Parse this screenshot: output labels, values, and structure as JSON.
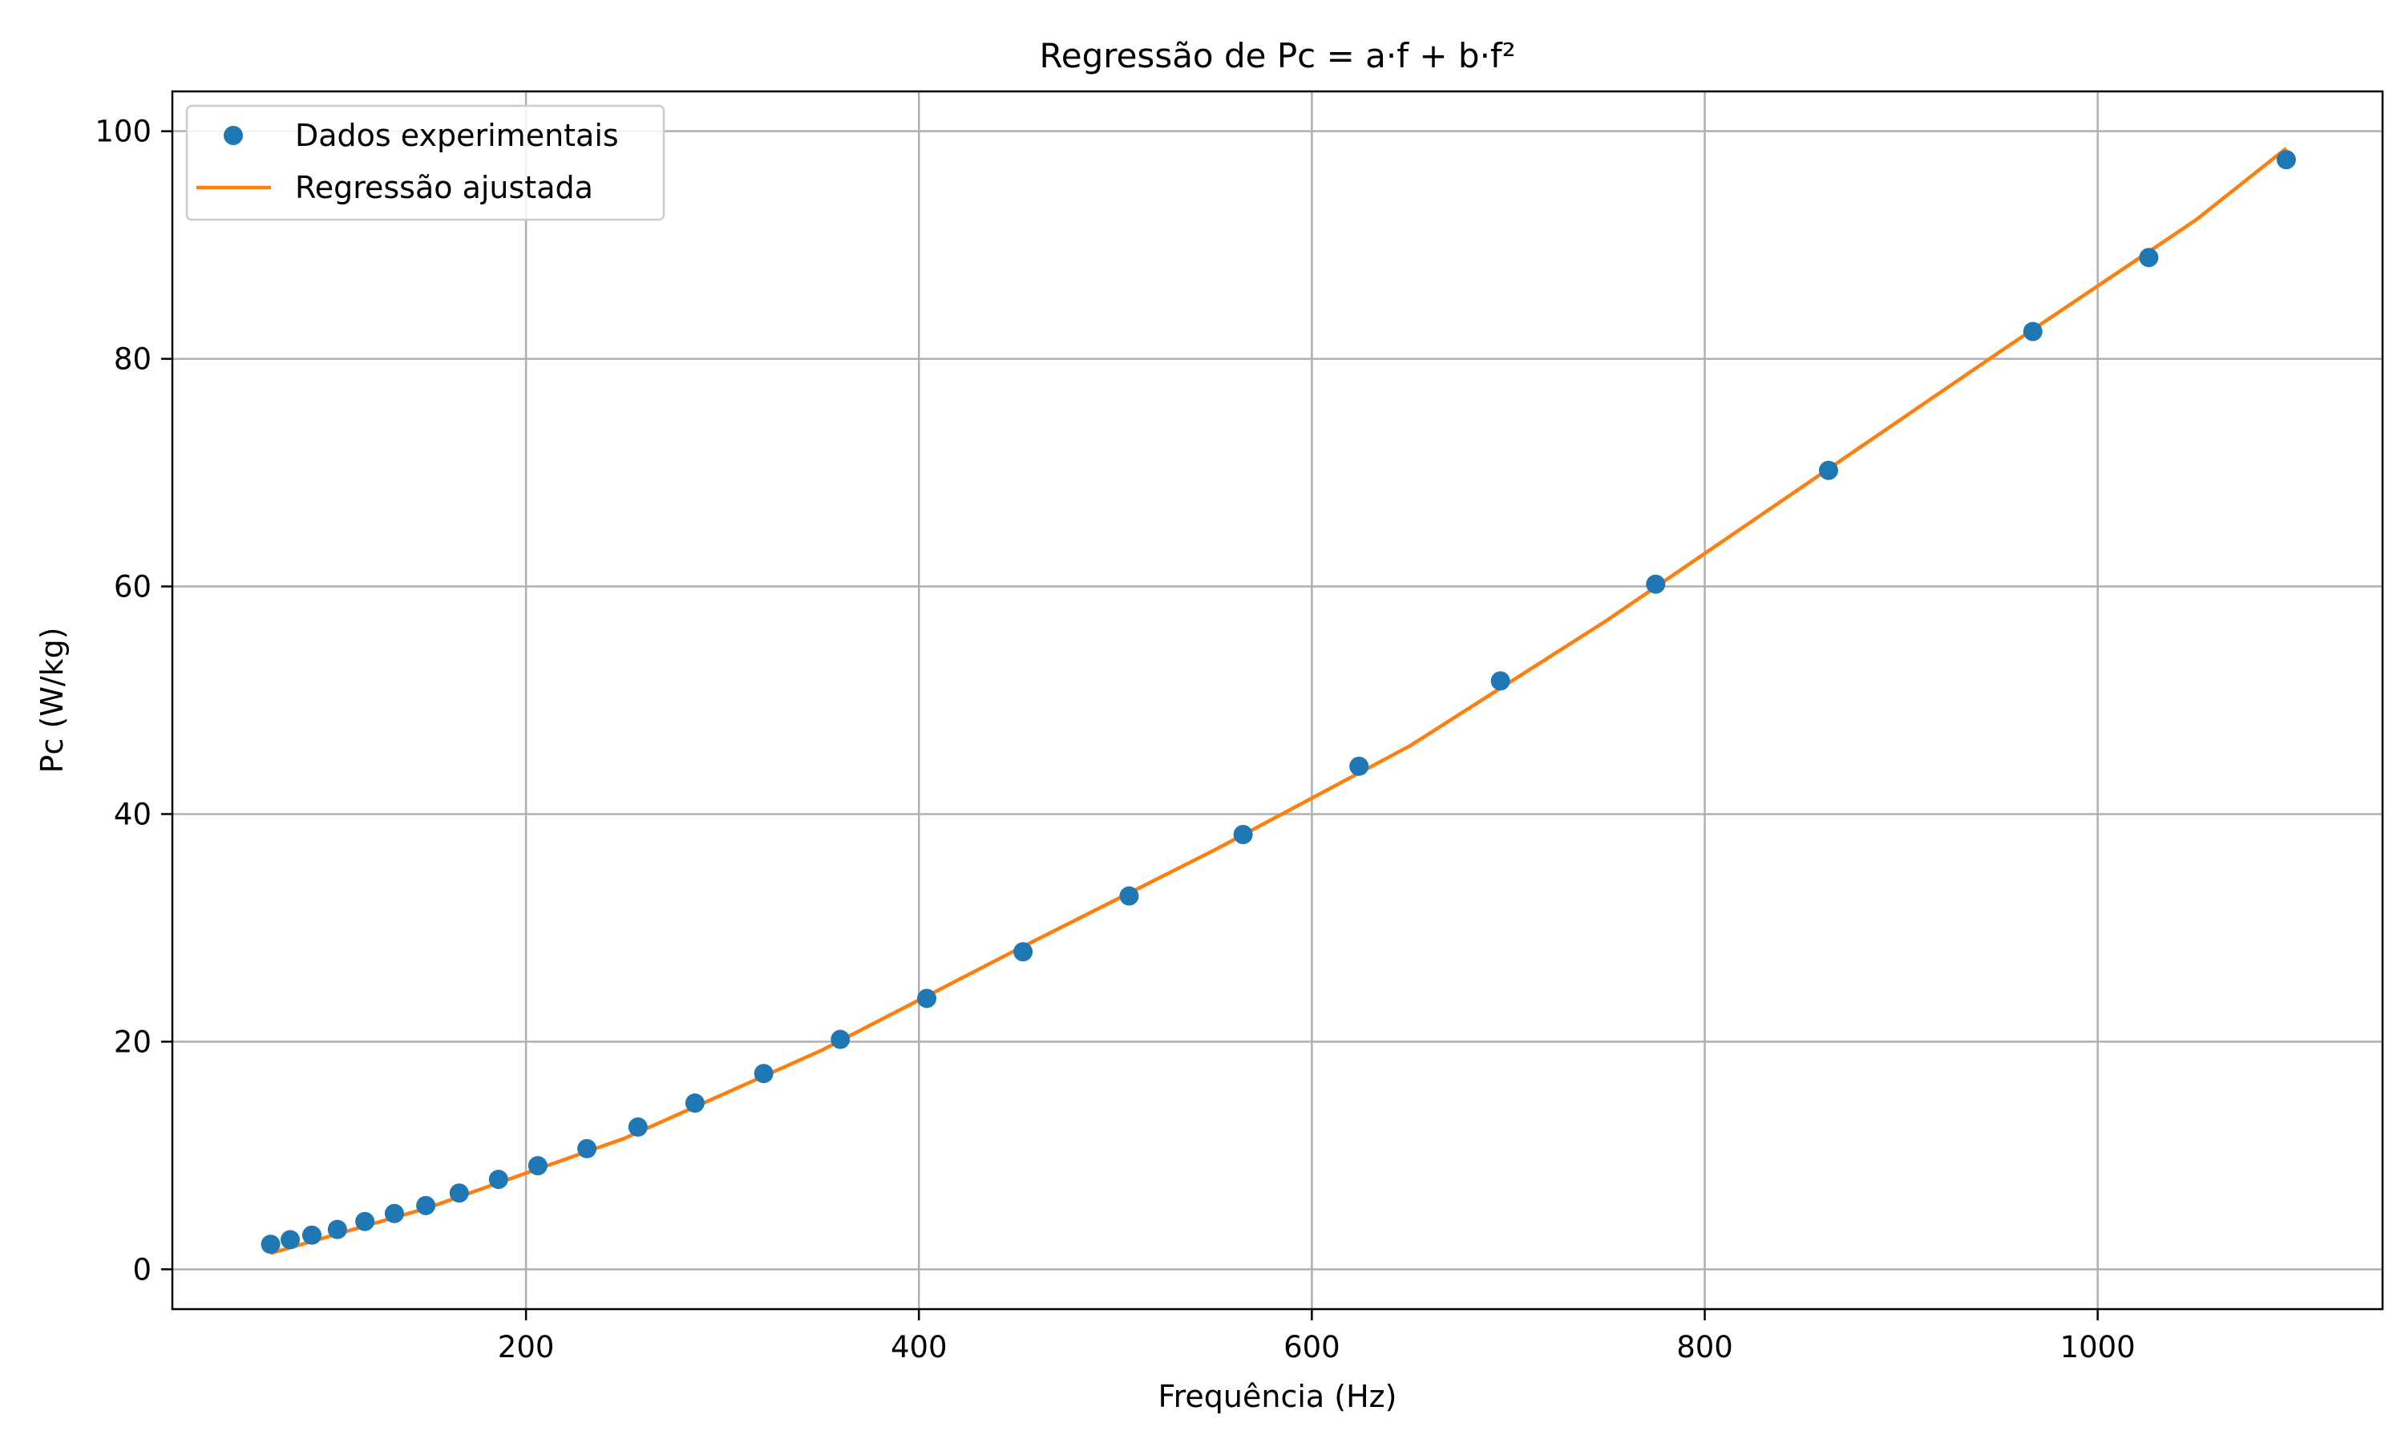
{
  "chart_data": {
    "type": "scatter",
    "title": "Regressão de Pc = a·f + b·f²",
    "xlabel": "Frequência (Hz)",
    "ylabel": "Pc (W/kg)",
    "xlim": [
      20,
      1145
    ],
    "ylim": [
      -3.5,
      103.5
    ],
    "xticks": [
      200,
      400,
      600,
      800,
      1000
    ],
    "yticks": [
      0,
      20,
      40,
      60,
      80,
      100
    ],
    "grid": true,
    "legend_position": "upper-left",
    "colors": {
      "points": "#1f77b4",
      "fit": "#ff7f0e"
    },
    "series": [
      {
        "name": "Dados experimentais",
        "kind": "scatter",
        "x": [
          70,
          80,
          91,
          104,
          118,
          133,
          149,
          166,
          186,
          206,
          231,
          257,
          286,
          321,
          360,
          404,
          453,
          507,
          565,
          624,
          696,
          775,
          863,
          967,
          1026,
          1096
        ],
        "y": [
          2.2,
          2.6,
          3.0,
          3.5,
          4.2,
          4.9,
          5.6,
          6.7,
          7.9,
          9.1,
          10.6,
          12.5,
          14.6,
          17.2,
          20.2,
          23.8,
          27.9,
          32.8,
          38.2,
          44.2,
          51.7,
          60.2,
          70.2,
          82.4,
          88.9,
          97.5
        ]
      },
      {
        "name": "Regressão ajustada",
        "kind": "line",
        "x": [
          70,
          150,
          250,
          350,
          450,
          550,
          650,
          750,
          850,
          950,
          1050,
          1096
        ],
        "y": [
          1.4,
          5.4,
          11.5,
          19.2,
          28.1,
          36.8,
          46.0,
          57.0,
          68.8,
          80.6,
          92.2,
          98.5
        ]
      }
    ]
  }
}
